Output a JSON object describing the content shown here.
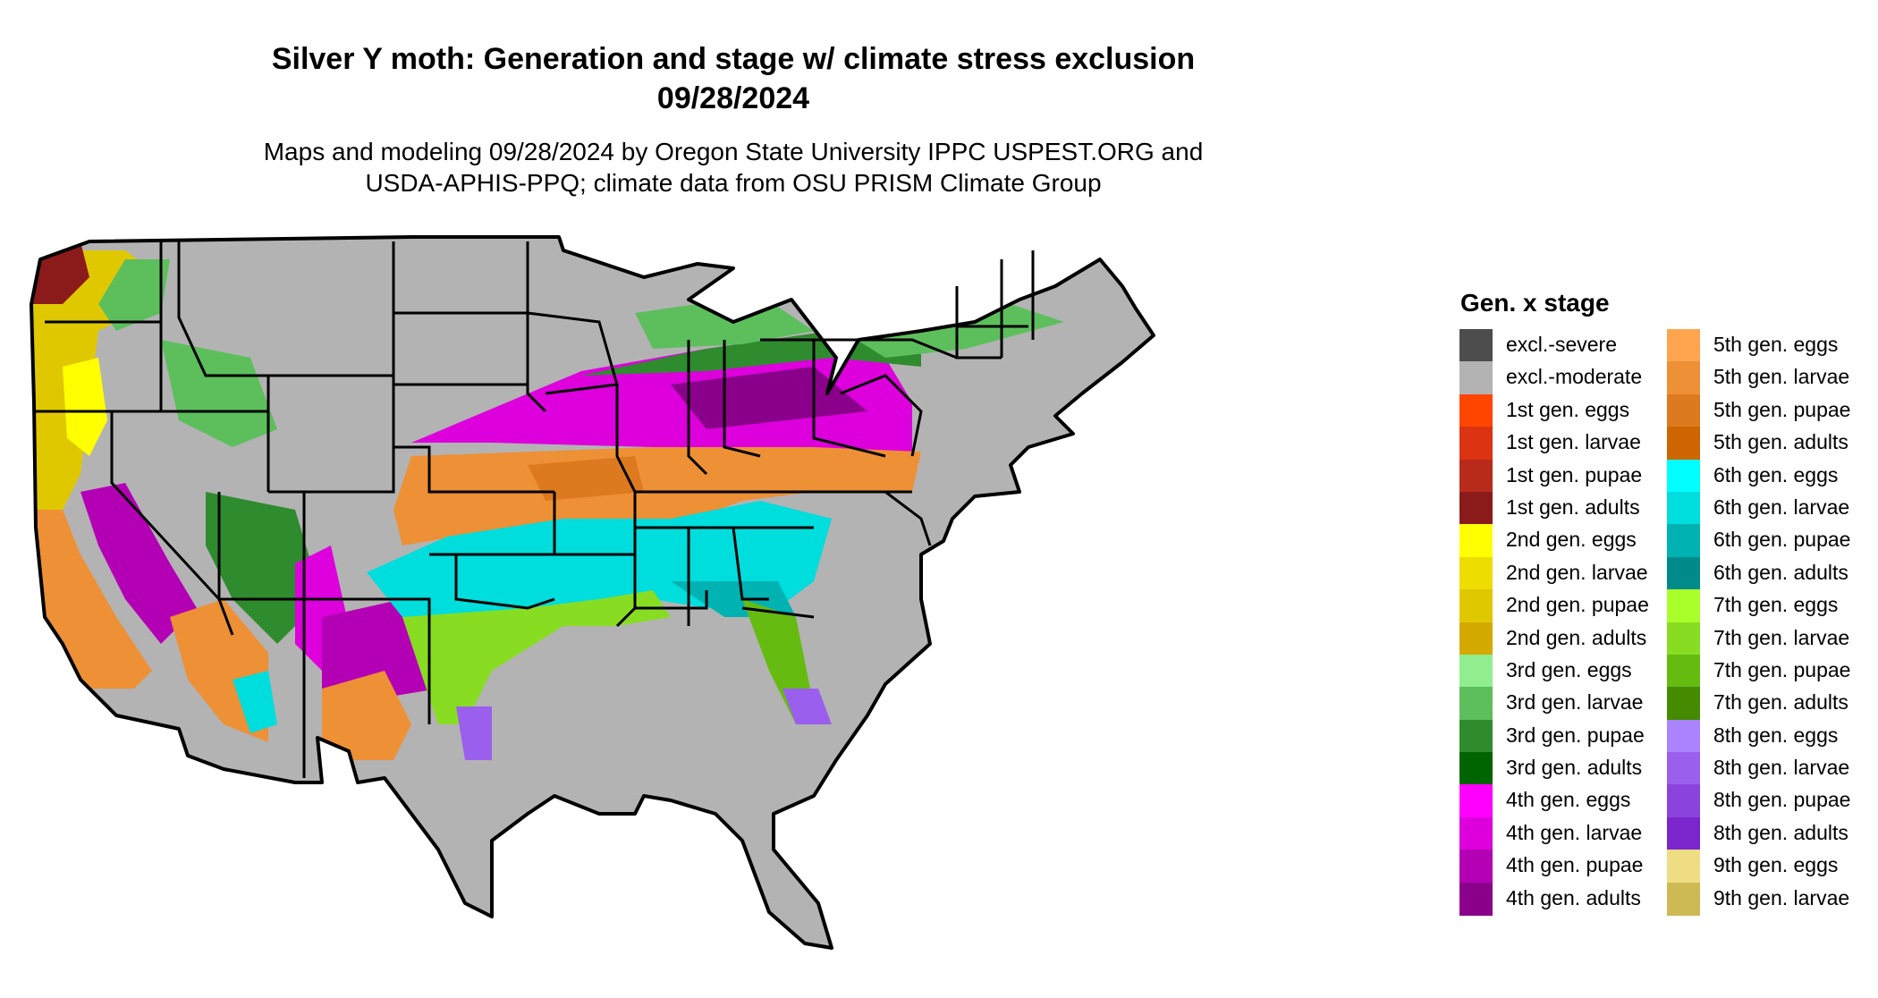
{
  "title_line1": "Silver Y moth: Generation and stage w/ climate stress exclusion",
  "title_line2": "09/28/2024",
  "subtitle_line1": "Maps and modeling 09/28/2024 by Oregon State University IPPC USPEST.ORG and",
  "subtitle_line2": "USDA-APHIS-PPQ; climate data from OSU PRISM Climate Group",
  "legend": {
    "title": "Gen. x stage",
    "items": [
      {
        "label": "excl.-severe",
        "color": "#4d4d4d"
      },
      {
        "label": "excl.-moderate",
        "color": "#b3b3b3"
      },
      {
        "label": "1st gen. eggs",
        "color": "#ff4500"
      },
      {
        "label": "1st gen. larvae",
        "color": "#dc3412"
      },
      {
        "label": "1st gen. pupae",
        "color": "#b82a1a"
      },
      {
        "label": "1st gen. adults",
        "color": "#8b1a1a"
      },
      {
        "label": "2nd gen. eggs",
        "color": "#ffff00"
      },
      {
        "label": "2nd gen. larvae",
        "color": "#eedd00"
      },
      {
        "label": "2nd gen. pupae",
        "color": "#e0c800"
      },
      {
        "label": "2nd gen. adults",
        "color": "#d4aa00"
      },
      {
        "label": "3rd gen. eggs",
        "color": "#90ee90"
      },
      {
        "label": "3rd gen. larvae",
        "color": "#5cbf5c"
      },
      {
        "label": "3rd gen. pupae",
        "color": "#2e8b2e"
      },
      {
        "label": "3rd gen. adults",
        "color": "#006400"
      },
      {
        "label": "4th gen. eggs",
        "color": "#ff00ff"
      },
      {
        "label": "4th gen. larvae",
        "color": "#dd00dd"
      },
      {
        "label": "4th gen. pupae",
        "color": "#b400b4"
      },
      {
        "label": "4th gen. adults",
        "color": "#8b008b"
      },
      {
        "label": "5th gen. eggs",
        "color": "#ffa54f"
      },
      {
        "label": "5th gen. larvae",
        "color": "#ee9035"
      },
      {
        "label": "5th gen. pupae",
        "color": "#dd7a1f"
      },
      {
        "label": "5th gen. adults",
        "color": "#cd6600"
      },
      {
        "label": "6th gen. eggs",
        "color": "#00ffff"
      },
      {
        "label": "6th gen. larvae",
        "color": "#00dddd"
      },
      {
        "label": "6th gen. pupae",
        "color": "#00b2b2"
      },
      {
        "label": "6th gen. adults",
        "color": "#008b8b"
      },
      {
        "label": "7th gen. eggs",
        "color": "#aaff2a"
      },
      {
        "label": "7th gen. larvae",
        "color": "#88dd22"
      },
      {
        "label": "7th gen. pupae",
        "color": "#66bb11"
      },
      {
        "label": "7th gen. adults",
        "color": "#458b00"
      },
      {
        "label": "8th gen. eggs",
        "color": "#ab82ff"
      },
      {
        "label": "8th gen. larvae",
        "color": "#9b5fee"
      },
      {
        "label": "8th gen. pupae",
        "color": "#8a44dd"
      },
      {
        "label": "8th gen. adults",
        "color": "#7a26cc"
      },
      {
        "label": "9th gen. eggs",
        "color": "#eedd82"
      },
      {
        "label": "9th gen. larvae",
        "color": "#cdba55"
      }
    ]
  }
}
